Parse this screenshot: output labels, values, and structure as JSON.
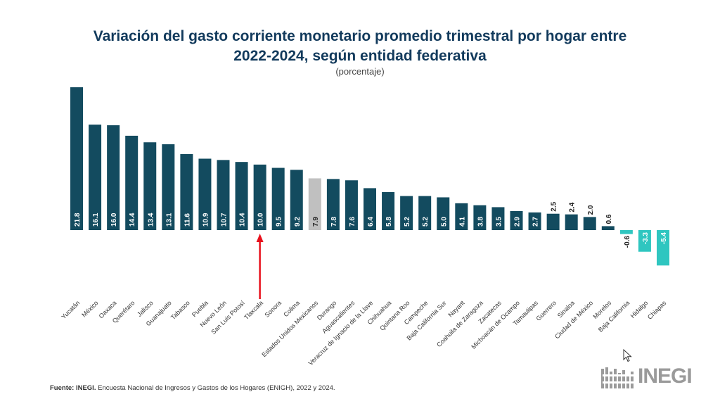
{
  "title_line1": "Variación del gasto corriente monetario promedio trimestral por hogar entre",
  "title_line2": "2022-2024, según entidad federativa",
  "subtitle": "(porcentaje)",
  "footer": {
    "source_label": "Fuente:",
    "inegi_label": "INEGI.",
    "text": "Encuesta Nacional de Ingresos y Gastos de los Hogares (ENIGH), 2022 y 2024."
  },
  "logo": {
    "text": "INEGI"
  },
  "colors": {
    "positive": "#134b5f",
    "national": "#c0c0c0",
    "negative": "#2fc6c0",
    "arrow": "#e8101c",
    "title": "#123a5c"
  },
  "chart_data": {
    "type": "bar",
    "title": "Variación del gasto corriente monetario promedio trimestral por hogar entre 2022-2024, según entidad federativa",
    "subtitle": "(porcentaje)",
    "categories": [
      "Yucatán",
      "México",
      "Oaxaca",
      "Querétaro",
      "Jalisco",
      "Guanajuato",
      "Tabasco",
      "Puebla",
      "Nuevo León",
      "San Luis Potosí",
      "Tlaxcala",
      "Sonora",
      "Colima",
      "Estados Unidos Mexicanos",
      "Durango",
      "Aguascalientes",
      "Veracruz de Ignacio de la Llave",
      "Chihuahua",
      "Quintana Roo",
      "Campeche",
      "Baja California Sur",
      "Nayarit",
      "Coahuila de Zaragoza",
      "Zacatecas",
      "Michoacán de Ocampo",
      "Tamaulipas",
      "Guerrero",
      "Sinaloa",
      "Ciudad de México",
      "Morelos",
      "Baja California",
      "Hidalgo",
      "Chiapas"
    ],
    "values": [
      21.8,
      16.1,
      16.0,
      14.4,
      13.4,
      13.1,
      11.6,
      10.9,
      10.7,
      10.4,
      10.0,
      9.5,
      9.2,
      7.9,
      7.8,
      7.6,
      6.4,
      5.8,
      5.2,
      5.2,
      5.0,
      4.1,
      3.8,
      3.5,
      2.9,
      2.7,
      2.5,
      2.4,
      2.0,
      0.6,
      -0.6,
      -3.3,
      -5.4
    ],
    "labels": [
      "21.8",
      "16.1",
      "16.0",
      "14.4",
      "13.4",
      "13.1",
      "11.6",
      "10.9",
      "10.7",
      "10.4",
      "10.0",
      "9.5",
      "9.2",
      "7.9",
      "7.8",
      "7.6",
      "6.4",
      "5.8",
      "5.2",
      "5.2",
      "5.0",
      "4.1",
      "3.8",
      "3.5",
      "2.9",
      "2.7",
      "2.5",
      "2.4",
      "2.0",
      "0.6",
      "-0.6",
      "-3.3",
      "-5.4"
    ],
    "highlight_category": "Estados Unidos Mexicanos",
    "arrow_category": "Tlaxcala",
    "grid": false,
    "ylim": [
      -6,
      22
    ]
  }
}
